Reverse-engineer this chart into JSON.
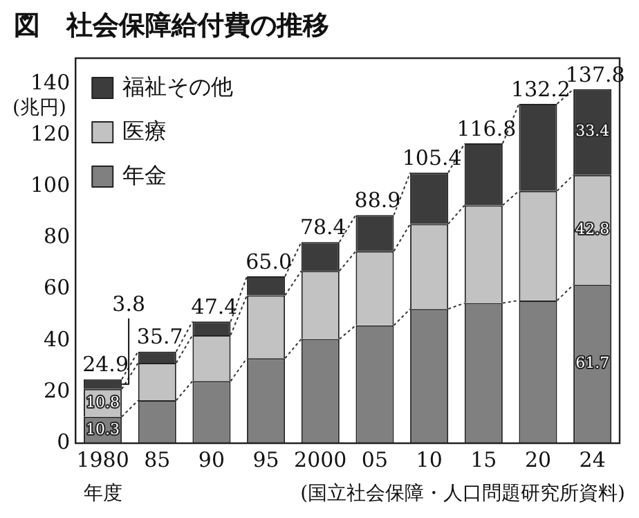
{
  "chart_data": {
    "type": "bar",
    "title": "図　社会保障給付費の推移",
    "xlabel": "年度",
    "ylabel": "(兆円)",
    "annotations": [
      "(国立社会保障・人口問題研究所資料)"
    ],
    "categories": [
      "1980",
      "85",
      "90",
      "95",
      "2000",
      "05",
      "10",
      "15",
      "20",
      "24"
    ],
    "stacked": true,
    "ylim": [
      0,
      150
    ],
    "yticks": [
      0,
      20,
      40,
      60,
      80,
      100,
      120,
      140
    ],
    "grid": false,
    "legend": "top left",
    "series": [
      {
        "name": "年金",
        "color": "#808080",
        "values": [
          10.3,
          16.7,
          24.2,
          33.1,
          40.6,
          45.9,
          52.3,
          54.6,
          55.6,
          61.7
        ],
        "value_labels": [
          "10.3",
          null,
          null,
          null,
          null,
          null,
          null,
          null,
          null,
          "61.7"
        ]
      },
      {
        "name": "医療",
        "color": "#c2c2c2",
        "values": [
          10.8,
          14.6,
          17.9,
          24.5,
          26.5,
          28.9,
          33.1,
          38.1,
          42.7,
          42.8
        ],
        "value_labels": [
          "10.8",
          null,
          null,
          null,
          null,
          null,
          null,
          null,
          null,
          "42.8"
        ]
      },
      {
        "name": "福祉その他",
        "color": "#3c3c3c",
        "values": [
          3.8,
          4.4,
          5.3,
          7.4,
          11.3,
          14.1,
          20.0,
          24.1,
          33.9,
          33.4
        ],
        "value_labels": [
          "3.8",
          null,
          null,
          null,
          null,
          null,
          null,
          null,
          null,
          "33.4"
        ]
      }
    ],
    "totals": [
      "24.9",
      "35.7",
      "47.4",
      "65.0",
      "78.4",
      "88.9",
      "105.4",
      "116.8",
      "132.2",
      "137.8"
    ]
  }
}
